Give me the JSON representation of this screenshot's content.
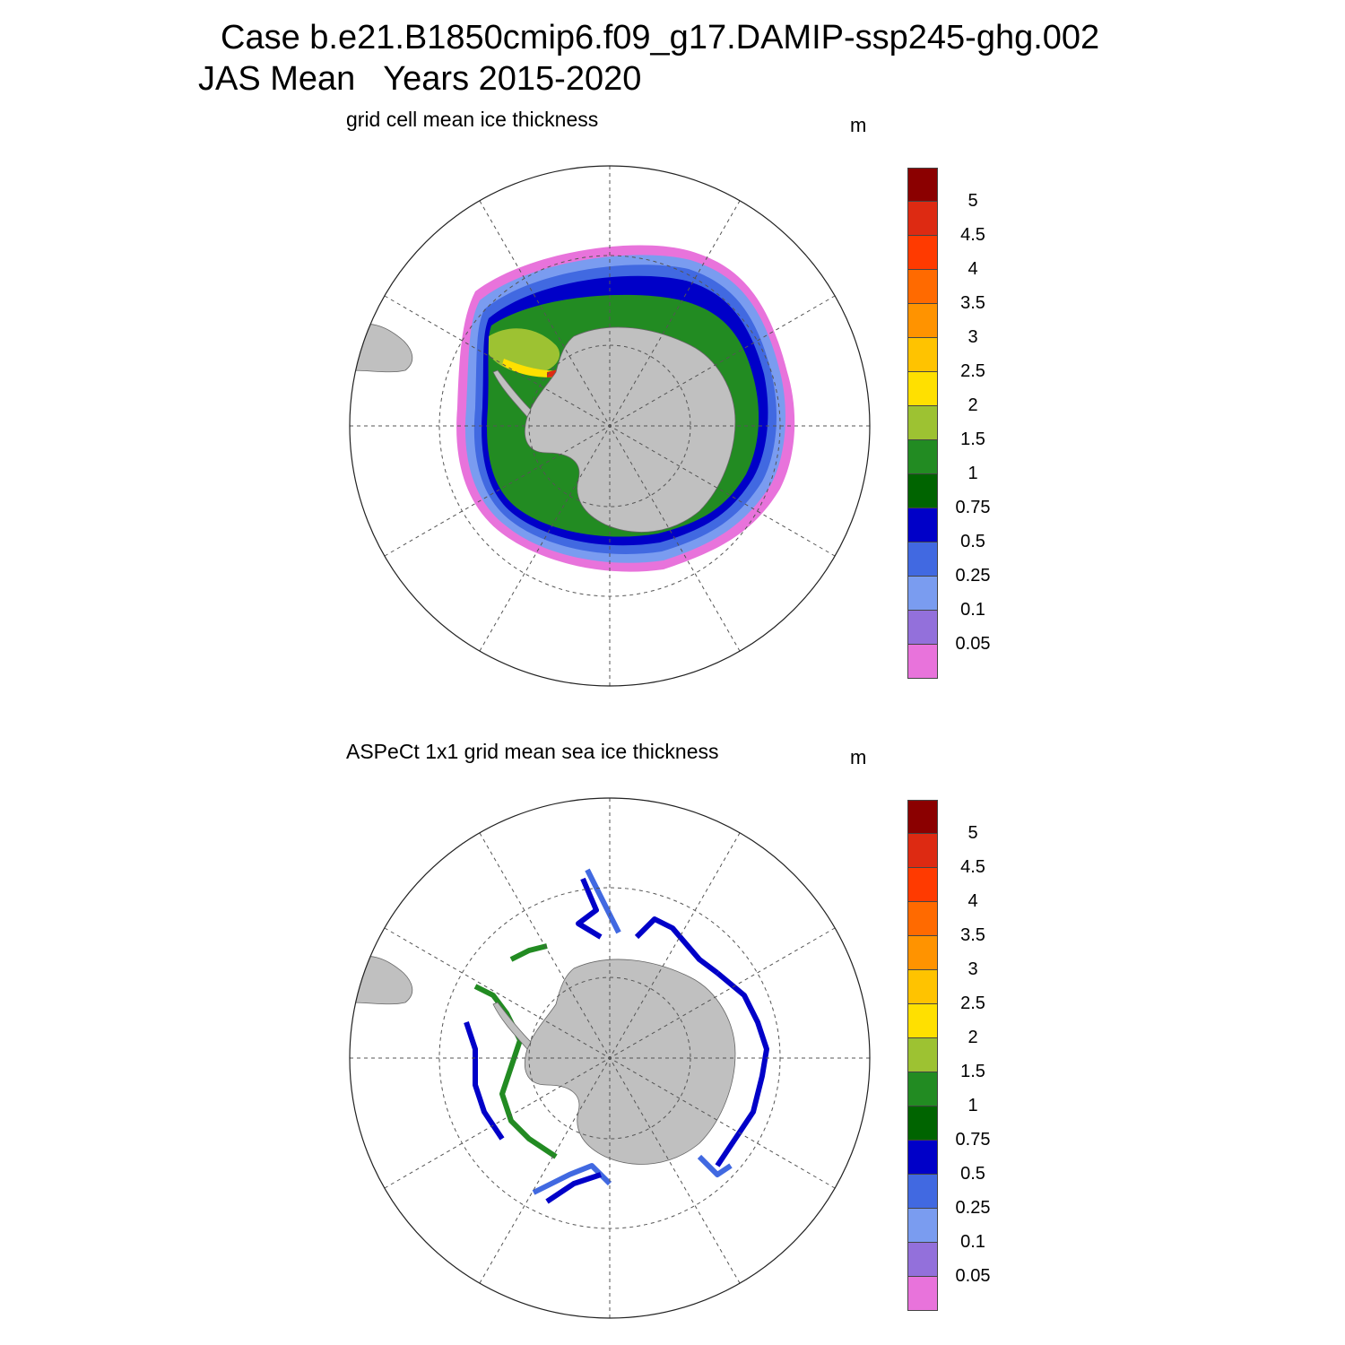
{
  "title": {
    "line1": "Case b.e21.B1850cmip6.f09_g17.DAMIP-ssp245-ghg.002",
    "line2": "JAS Mean   Years 2015-2020"
  },
  "panels": [
    {
      "subtitle": "grid cell mean ice thickness",
      "units": "m"
    },
    {
      "subtitle": "ASPeCt 1x1 grid mean sea ice thickness",
      "units": "m"
    }
  ],
  "colorbar": {
    "levels": [
      "5",
      "4.5",
      "4",
      "3.5",
      "3",
      "2.5",
      "2",
      "1.5",
      "1",
      "0.75",
      "0.5",
      "0.25",
      "0.1",
      "0.05"
    ],
    "colors": [
      "#8b0000",
      "#dd2a12",
      "#ff3a00",
      "#ff6a00",
      "#ff9300",
      "#ffc300",
      "#ffe000",
      "#9dc232",
      "#228b22",
      "#006400",
      "#0000c8",
      "#4169e1",
      "#7a9cf0",
      "#9370db",
      "#e873db"
    ]
  },
  "colors": {
    "land": "#c0c0c0",
    "grid": "#555555"
  }
}
